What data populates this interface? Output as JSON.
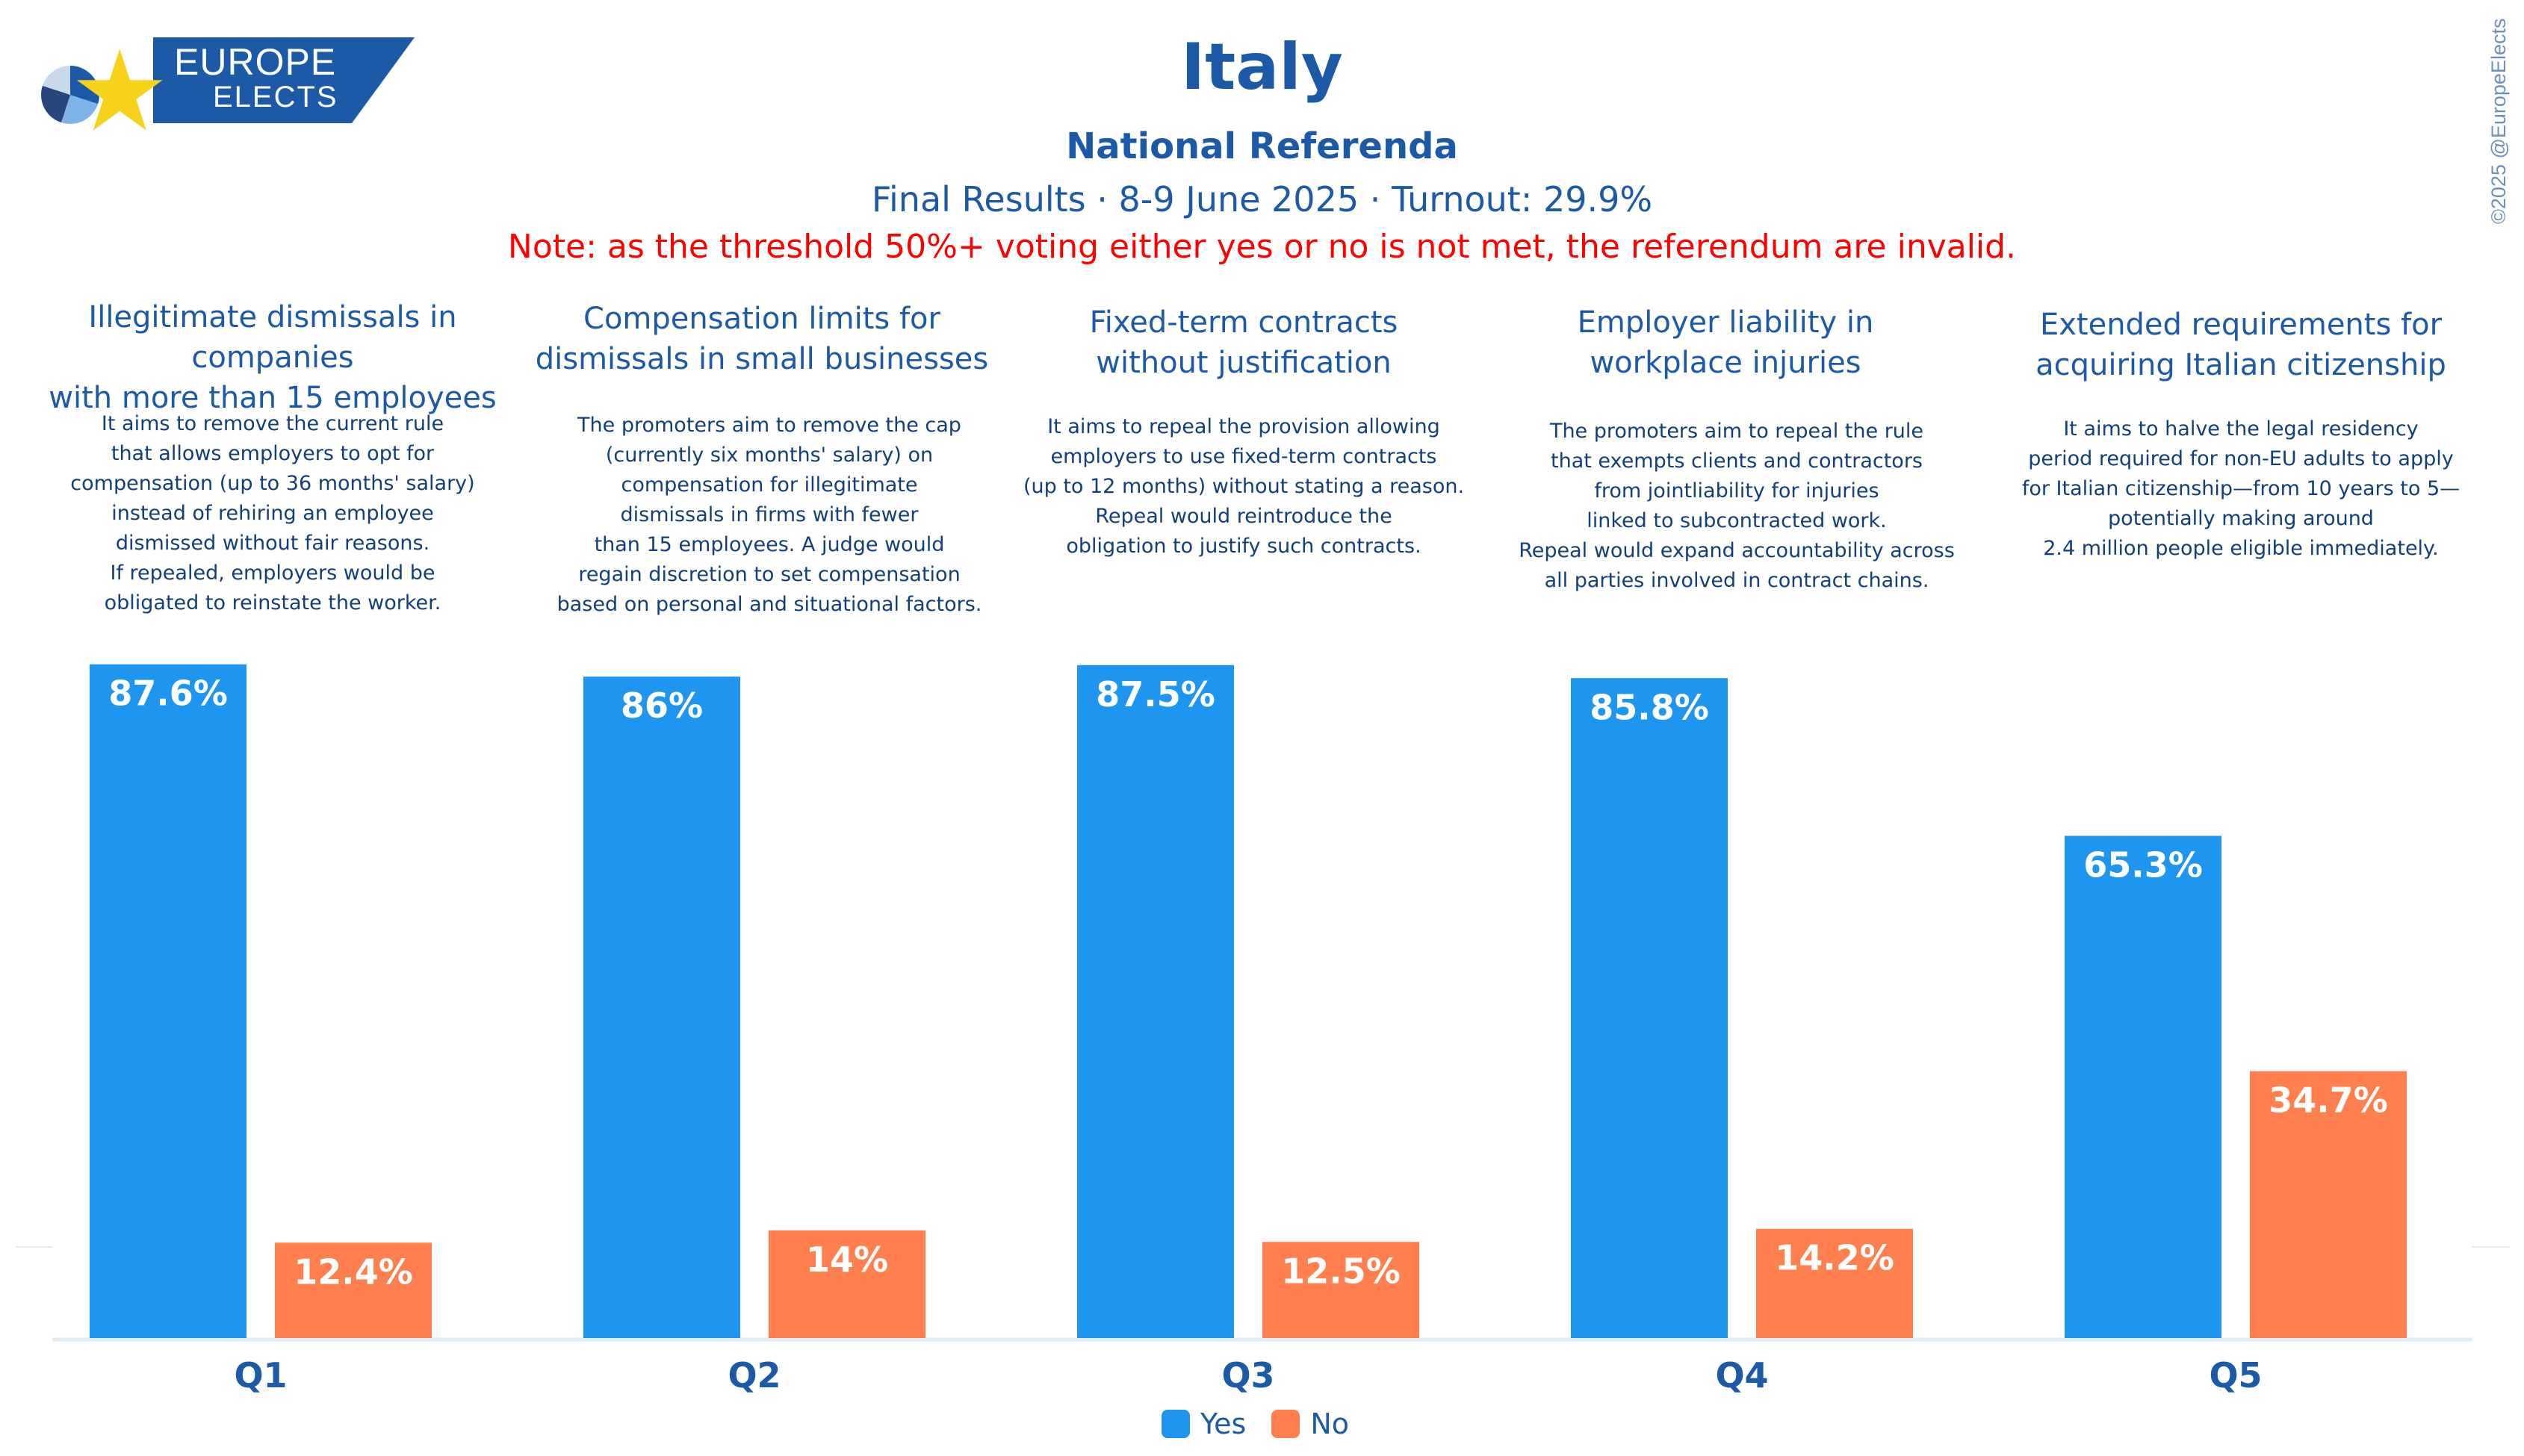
{
  "logo": {
    "line1": "EUROPE",
    "line2": "ELECTS"
  },
  "header": {
    "title": "Italy",
    "subtitle": "National Referenda",
    "results": "Final Results · 8-9 June 2025 · Turnout: 29.9%",
    "note": "Note: as the threshold 50%+ voting either yes or no is not met, the referendum are invalid."
  },
  "copyright": "©2025 @EuropeElects",
  "questions": [
    {
      "title": "Illegitimate dismissals in companies\nwith more than 15 employees",
      "description": "It aims to remove the current rule\nthat allows employers to opt for\ncompensation (up to 36 months' salary)\ninstead of rehiring an employee\ndismissed without fair reasons.\nIf repealed, employers would be\nobligated to reinstate the worker."
    },
    {
      "title": "Compensation limits for\ndismissals in small businesses",
      "description": "The promoters aim to remove the cap\n(currently six months' salary) on\ncompensation for illegitimate\ndismissals in firms with fewer\nthan 15 employees. A judge would\nregain discretion to set compensation\nbased on personal and situational factors."
    },
    {
      "title": "Fixed-term contracts\nwithout justification",
      "description": "It aims to repeal the provision allowing\nemployers to use fixed-term contracts\n(up to 12 months) without stating a reason.\nRepeal would reintroduce the\nobligation to justify such contracts."
    },
    {
      "title": "Employer liability in\nworkplace injuries",
      "description": "The promoters aim to repeal the rule\nthat exempts clients and contractors\nfrom jointliability for injuries\nlinked to subcontracted work.\nRepeal would expand accountability across\nall parties involved in contract chains."
    },
    {
      "title": "Extended requirements for\nacquiring Italian citizenship",
      "description": "It aims to halve the legal residency\nperiod required for non-EU adults to apply\nfor Italian citizenship—from 10 years to 5—\npotentially making around\n2.4 million people eligible immediately."
    }
  ],
  "chart_data": {
    "type": "bar",
    "categories": [
      "Q1",
      "Q2",
      "Q3",
      "Q4",
      "Q5"
    ],
    "series": [
      {
        "name": "Yes",
        "color": "#1e96f0",
        "values": [
          87.6,
          86,
          87.5,
          85.8,
          65.3
        ],
        "labels": [
          "87.6%",
          "86%",
          "87.5%",
          "85.8%",
          "65.3%"
        ]
      },
      {
        "name": "No",
        "color": "#ff7f4f",
        "values": [
          12.4,
          14,
          12.5,
          14.2,
          34.7
        ],
        "labels": [
          "12.4%",
          "14%",
          "12.5%",
          "14.2%",
          "34.7%"
        ]
      }
    ],
    "ylim": [
      0,
      100
    ],
    "grid": false,
    "legend": "bottom-center",
    "axis_color": "#e3ebf3",
    "label_color": "#ffffff"
  }
}
